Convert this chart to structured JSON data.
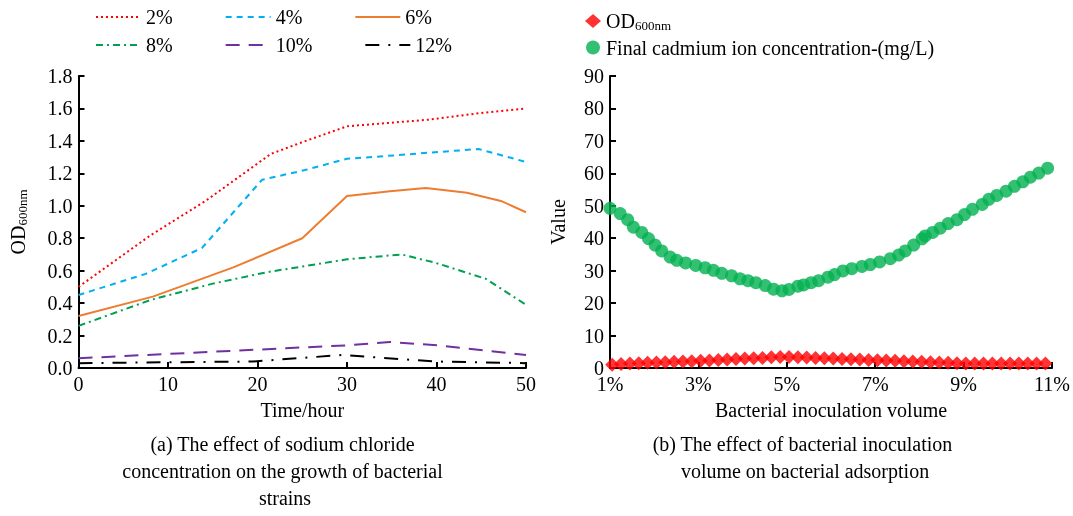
{
  "chart_data": [
    {
      "type": "line",
      "title": "(a) The effect of sodium chloride concentration on the growth of bacterial strains",
      "xlabel": "Time/hour",
      "ylabel": "OD$_{600nm}$",
      "xlim": [
        0,
        50
      ],
      "xticks": [
        0,
        10,
        20,
        30,
        40,
        50
      ],
      "ylim": [
        0,
        1.8
      ],
      "yticks": [
        {
          "value": 0,
          "label": "0.0"
        },
        0.2,
        0.4,
        0.6,
        0.8,
        {
          "value": 1,
          "label": "1.0"
        },
        1.2,
        1.4,
        1.6,
        1.8
      ],
      "grid": false,
      "legend": "top",
      "marker": "none",
      "series": [
        {
          "name": "2%",
          "color": "#ff0000",
          "line_style": "dotted",
          "x": [
            0,
            8.1,
            14.2,
            21.5,
            24.9,
            30,
            39,
            44.7,
            50
          ],
          "values": [
            0.5,
            0.82,
            1.03,
            1.32,
            1.39,
            1.49,
            1.53,
            1.57,
            1.6
          ]
        },
        {
          "name": "4%",
          "color": "#00b0f0",
          "line_style": "dashed",
          "x": [
            0,
            7.5,
            13.8,
            20.5,
            25.3,
            30,
            35.2,
            39.8,
            44.7,
            50
          ],
          "values": [
            0.45,
            0.58,
            0.74,
            1.16,
            1.22,
            1.29,
            1.31,
            1.33,
            1.35,
            1.27
          ]
        },
        {
          "name": "6%",
          "color": "#ed7d31",
          "line_style": "solid",
          "x": [
            0,
            8.3,
            17.3,
            25,
            30,
            34.8,
            38.8,
            43.4,
            47.2,
            50
          ],
          "values": [
            0.32,
            0.44,
            0.62,
            0.8,
            1.06,
            1.09,
            1.11,
            1.08,
            1.03,
            0.96
          ]
        },
        {
          "name": "8%",
          "color": "#00a050",
          "line_style": "dashdot",
          "x": [
            0,
            8.1,
            15,
            21,
            30,
            36.1,
            39.8,
            45.5,
            50
          ],
          "values": [
            0.26,
            0.42,
            0.52,
            0.59,
            0.67,
            0.7,
            0.65,
            0.55,
            0.39
          ]
        },
        {
          "name": "10%",
          "color": "#7030a0",
          "line_style": "longdash",
          "x": [
            0,
            30,
            34.8,
            40.2,
            50
          ],
          "values": [
            0.06,
            0.14,
            0.16,
            0.14,
            0.08
          ]
        },
        {
          "name": "12%",
          "color": "#000000",
          "line_style": "longdashdot",
          "x": [
            0,
            19.5,
            29.4,
            39.8,
            50
          ],
          "values": [
            0.03,
            0.04,
            0.08,
            0.04,
            0.03
          ]
        }
      ]
    },
    {
      "type": "scatter",
      "title": "(b) The effect of bacterial inoculation volume on bacterial adsorption",
      "xlabel": "Bacterial inoculation volume",
      "ylabel": "Value",
      "xlim": [
        1,
        11
      ],
      "xticks": [
        {
          "value": 1,
          "label": "1%"
        },
        {
          "value": 3,
          "label": "3%"
        },
        {
          "value": 5,
          "label": "5%"
        },
        {
          "value": 7,
          "label": "7%"
        },
        {
          "value": 9,
          "label": "9%"
        },
        {
          "value": 11,
          "label": "11%"
        }
      ],
      "ylim": [
        0,
        90
      ],
      "yticks": [
        0,
        10,
        20,
        30,
        40,
        50,
        60,
        70,
        80,
        90
      ],
      "grid": false,
      "legend": "top left",
      "series": [
        {
          "name": "OD$_{600nm}$",
          "color": "#ff0000",
          "marker": "diamond",
          "x": [
            1.05,
            1.25,
            1.45,
            1.65,
            1.85,
            2.05,
            2.25,
            2.45,
            2.65,
            2.85,
            3.05,
            3.25,
            3.45,
            3.65,
            3.85,
            4.05,
            4.25,
            4.45,
            4.65,
            4.85,
            5.05,
            5.25,
            5.45,
            5.65,
            5.85,
            6.05,
            6.25,
            6.45,
            6.65,
            6.85,
            7.05,
            7.25,
            7.45,
            7.65,
            7.85,
            8.05,
            8.25,
            8.45,
            8.65,
            8.85,
            9.05,
            9.25,
            9.45,
            9.65,
            9.85,
            10.05,
            10.25,
            10.45,
            10.65,
            10.85
          ],
          "values": [
            1,
            1.2,
            1.4,
            1.5,
            1.6,
            1.7,
            1.8,
            1.9,
            2,
            2.1,
            2.2,
            2.3,
            2.5,
            2.6,
            2.8,
            2.9,
            3,
            3.1,
            3.3,
            3.4,
            3.4,
            3.3,
            3.2,
            3.1,
            3,
            2.9,
            2.8,
            2.7,
            2.6,
            2.5,
            2.4,
            2.3,
            2.2,
            2.1,
            2,
            1.9,
            1.8,
            1.7,
            1.6,
            1.5,
            1.4,
            1.4,
            1.4,
            1.4,
            1.4,
            1.4,
            1.4,
            1.4,
            1.4,
            1.4
          ]
        },
        {
          "name": "Final cadmium ion concentration-(mg/L)",
          "color": "#00b050",
          "marker": "circle",
          "x": [
            1,
            1.23,
            1.4,
            1.53,
            1.72,
            1.87,
            2.02,
            2.17,
            2.36,
            2.51,
            2.71,
            2.94,
            3.15,
            3.34,
            3.53,
            3.75,
            3.94,
            4.12,
            4.3,
            4.51,
            4.7,
            4.89,
            5.05,
            5.25,
            5.38,
            5.55,
            5.72,
            5.93,
            6.08,
            6.27,
            6.47,
            6.7,
            6.89,
            7.1,
            7.34,
            7.53,
            7.68,
            7.87,
            8.06,
            8.13,
            8.3,
            8.47,
            8.65,
            8.85,
            9.02,
            9.2,
            9.42,
            9.57,
            9.75,
            9.96,
            10.15,
            10.34,
            10.51,
            10.7,
            10.9
          ],
          "values": [
            49.2,
            47.6,
            45.7,
            43.4,
            41.8,
            39.9,
            37.9,
            36.1,
            34.2,
            33.2,
            32.4,
            31.6,
            30.9,
            30.1,
            29.2,
            28.4,
            27.5,
            26.9,
            26.3,
            25.4,
            24.3,
            23.8,
            24.2,
            25.2,
            25.6,
            26.3,
            26.9,
            28,
            28.8,
            29.9,
            30.6,
            31.3,
            31.9,
            32.7,
            33.7,
            34.8,
            36.1,
            37.9,
            39.8,
            40.7,
            41.8,
            43.1,
            44.5,
            45.7,
            47.3,
            48.9,
            50.4,
            52,
            53.2,
            54.5,
            56,
            57.4,
            58.8,
            60.1,
            61.6
          ]
        }
      ]
    }
  ]
}
